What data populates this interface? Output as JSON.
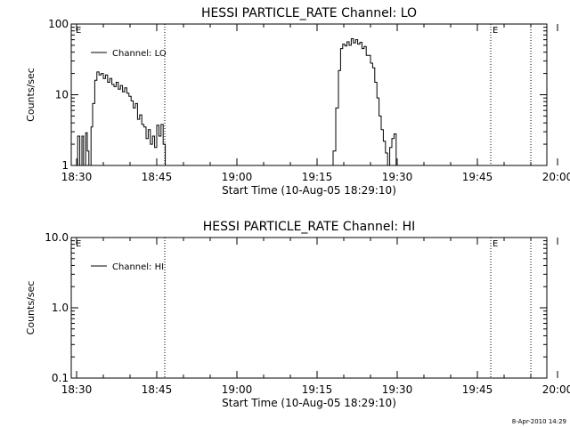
{
  "chart_data": [
    {
      "type": "line",
      "title": "HESSI PARTICLE_RATE Channel: LO",
      "xlabel": "Start Time (10-Aug-05 18:29:10)",
      "ylabel": "Counts/sec",
      "yscale": "log",
      "ylim": [
        1,
        100
      ],
      "xlim_minutes_after_1830": [
        -1,
        88
      ],
      "x_ticks": [
        "18:30",
        "18:45",
        "19:00",
        "19:15",
        "19:30",
        "19:45",
        "20:00"
      ],
      "y_ticks": [
        "1",
        "10",
        "100"
      ],
      "grid": false,
      "legend_position": "top-left",
      "markers": [
        {
          "label": "E",
          "minute": -0.5,
          "style": "none"
        },
        {
          "label": "",
          "minute": 16.5,
          "style": "dotted"
        },
        {
          "label": "E",
          "minute": 77.5,
          "style": "dotted"
        },
        {
          "label": "",
          "minute": 85,
          "style": "dotted"
        }
      ],
      "series": [
        {
          "name": "Channel: LO",
          "segments": [
            {
              "minute": [
                -0.3,
                0.2,
                0.6,
                1.0,
                1.3,
                1.7,
                2.0,
                2.3,
                2.7,
                3.0,
                3.4,
                3.8,
                4.2,
                4.6,
                5.0,
                5.4,
                5.8,
                6.2,
                6.6,
                7.0,
                7.4,
                7.8,
                8.2,
                8.6,
                9.0,
                9.4,
                9.8,
                10.2,
                10.6,
                11.0,
                11.4,
                11.8,
                12.2,
                12.6,
                13.0,
                13.4,
                13.8,
                14.2,
                14.6,
                15.0,
                15.4,
                15.8,
                16.2,
                16.6
              ],
              "value": [
                1.0,
                2.6,
                1.0,
                2.6,
                1.0,
                2.9,
                1.6,
                1.0,
                3.5,
                7.5,
                16,
                21,
                19,
                20,
                17,
                19,
                15,
                17,
                14,
                13,
                15,
                12,
                13.5,
                11,
                12.5,
                10.5,
                9.5,
                8.2,
                6.5,
                7.5,
                4.5,
                5.2,
                3.8,
                3.5,
                2.4,
                3.2,
                2.0,
                2.6,
                1.8,
                3.7,
                2.6,
                3.8,
                2.0,
                1.0
              ]
            },
            {
              "minute": [
                47.5,
                48.0,
                48.5,
                49.0,
                49.4,
                49.8,
                50.2,
                50.6,
                51.0,
                51.4,
                51.8,
                52.2,
                52.6,
                53.0,
                53.4,
                53.8,
                54.2,
                54.6,
                55.0,
                55.4,
                55.8,
                56.2,
                56.6,
                57.0,
                57.4,
                57.8,
                58.2,
                58.6,
                59.0,
                59.4,
                59.8
              ],
              "value": [
                1.0,
                1.6,
                6.5,
                22,
                45,
                52,
                49,
                56,
                50,
                62,
                54,
                60,
                52,
                55,
                45,
                48,
                36,
                36,
                28,
                24,
                15,
                9,
                5,
                3.2,
                2.2,
                1.5,
                1.0,
                1.8,
                2.4,
                2.8,
                1.0
              ]
            }
          ]
        }
      ]
    },
    {
      "type": "line",
      "title": "HESSI PARTICLE_RATE Channel: HI",
      "xlabel": "Start Time (10-Aug-05 18:29:10)",
      "ylabel": "Counts/sec",
      "yscale": "log",
      "ylim": [
        0.1,
        10
      ],
      "xlim_minutes_after_1830": [
        -1,
        88
      ],
      "x_ticks": [
        "18:30",
        "18:45",
        "19:00",
        "19:15",
        "19:30",
        "19:45",
        "20:00"
      ],
      "y_ticks": [
        "0.1",
        "1.0",
        "10.0"
      ],
      "grid": false,
      "legend_position": "top-left",
      "markers": [
        {
          "label": "E",
          "minute": -0.5,
          "style": "none"
        },
        {
          "label": "",
          "minute": 16.5,
          "style": "dotted"
        },
        {
          "label": "E",
          "minute": 77.5,
          "style": "dotted"
        },
        {
          "label": "",
          "minute": 85,
          "style": "dotted"
        }
      ],
      "series": [
        {
          "name": "Channel: HI",
          "segments": []
        }
      ]
    }
  ],
  "footer": {
    "timestamp": "8-Apr-2010 14:29"
  }
}
